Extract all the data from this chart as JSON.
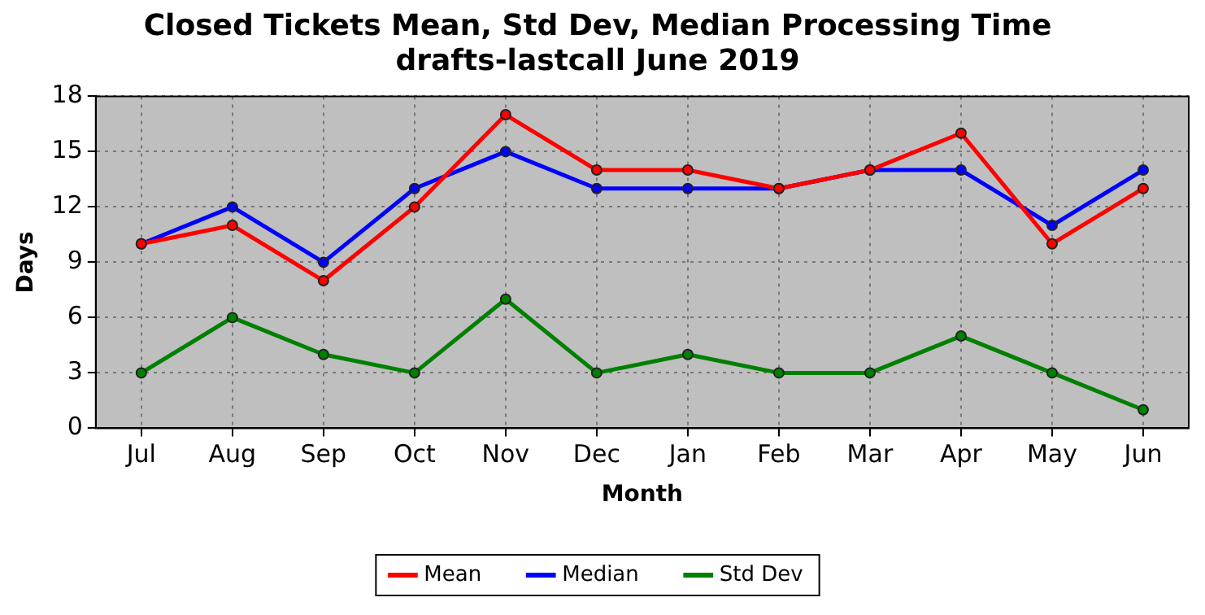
{
  "chart_data": {
    "type": "line",
    "title": "Closed Tickets Mean, Std Dev, Median Processing Time\ndrafts-lastcall June 2019",
    "xlabel": "Month",
    "ylabel": "Days",
    "categories": [
      "Jul",
      "Aug",
      "Sep",
      "Oct",
      "Nov",
      "Dec",
      "Jan",
      "Feb",
      "Mar",
      "Apr",
      "May",
      "Jun"
    ],
    "series": [
      {
        "name": "Mean",
        "color": "#ff0000",
        "values": [
          10,
          11,
          8,
          12,
          17,
          14,
          14,
          13,
          14,
          16,
          10,
          13
        ]
      },
      {
        "name": "Median",
        "color": "#0000ff",
        "values": [
          10,
          12,
          9,
          13,
          15,
          13,
          13,
          13,
          14,
          14,
          11,
          14
        ]
      },
      {
        "name": "Std Dev",
        "color": "#008000",
        "values": [
          3,
          6,
          4,
          3,
          7,
          3,
          4,
          3,
          3,
          5,
          3,
          1
        ]
      }
    ],
    "ylim": [
      0,
      18
    ],
    "yticks": [
      0,
      3,
      6,
      9,
      12,
      15,
      18
    ],
    "grid": true,
    "legend": "bottom",
    "marker": "circle",
    "line_style": "solid"
  }
}
